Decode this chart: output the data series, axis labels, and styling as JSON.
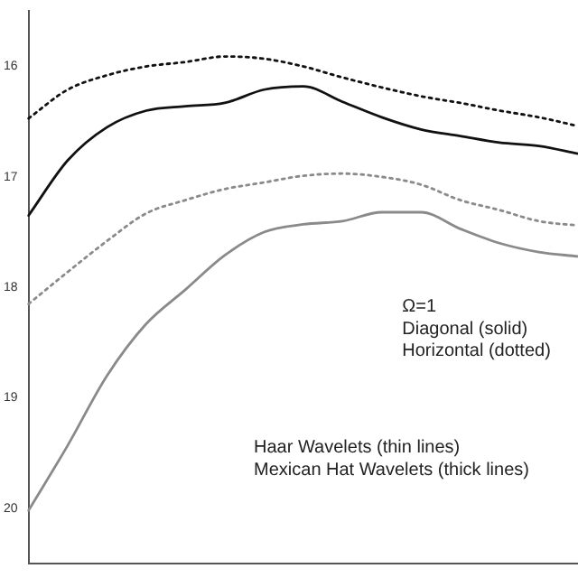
{
  "chart_data": {
    "type": "line",
    "categories": [
      null,
      null,
      null,
      null,
      null,
      null,
      null,
      null,
      null,
      null,
      null,
      null,
      null,
      null,
      null
    ],
    "series": [
      {
        "color": "#111111",
        "line_style": "dotted",
        "values": [
          16.47,
          16.21,
          16.08,
          16.0,
          15.96,
          15.91,
          15.93,
          16.0,
          16.1,
          16.19,
          16.27,
          16.33,
          16.4,
          16.46,
          16.54
        ]
      },
      {
        "color": "#111111",
        "line_style": "solid",
        "values": [
          17.35,
          16.85,
          16.55,
          16.4,
          16.36,
          16.33,
          16.21,
          16.18,
          16.32,
          16.46,
          16.57,
          16.63,
          16.69,
          16.72,
          16.79
        ]
      },
      {
        "color": "#8a8a8a",
        "line_style": "dotted",
        "values": [
          18.15,
          17.86,
          17.58,
          17.33,
          17.21,
          17.11,
          17.05,
          16.99,
          16.97,
          17.0,
          17.07,
          17.21,
          17.3,
          17.4,
          17.44
        ]
      },
      {
        "color": "#8a8a8a",
        "line_style": "solid",
        "values": [
          20.02,
          19.43,
          18.8,
          18.33,
          18.02,
          17.71,
          17.5,
          17.43,
          17.4,
          17.32,
          17.32,
          17.47,
          17.6,
          17.68,
          17.72
        ]
      }
    ],
    "ylim": [
      20.5,
      15.5
    ],
    "yticks": [
      16,
      17,
      18,
      19,
      20
    ],
    "tick_labels": "y",
    "grid": false,
    "legend": false,
    "marker": "none",
    "annotations": [
      "Ω=1",
      "Diagonal (solid)",
      "Horizontal (dotted)",
      "Haar Wavelets (thin lines)",
      "Mexican Hat Wavelets (thick lines)"
    ]
  }
}
